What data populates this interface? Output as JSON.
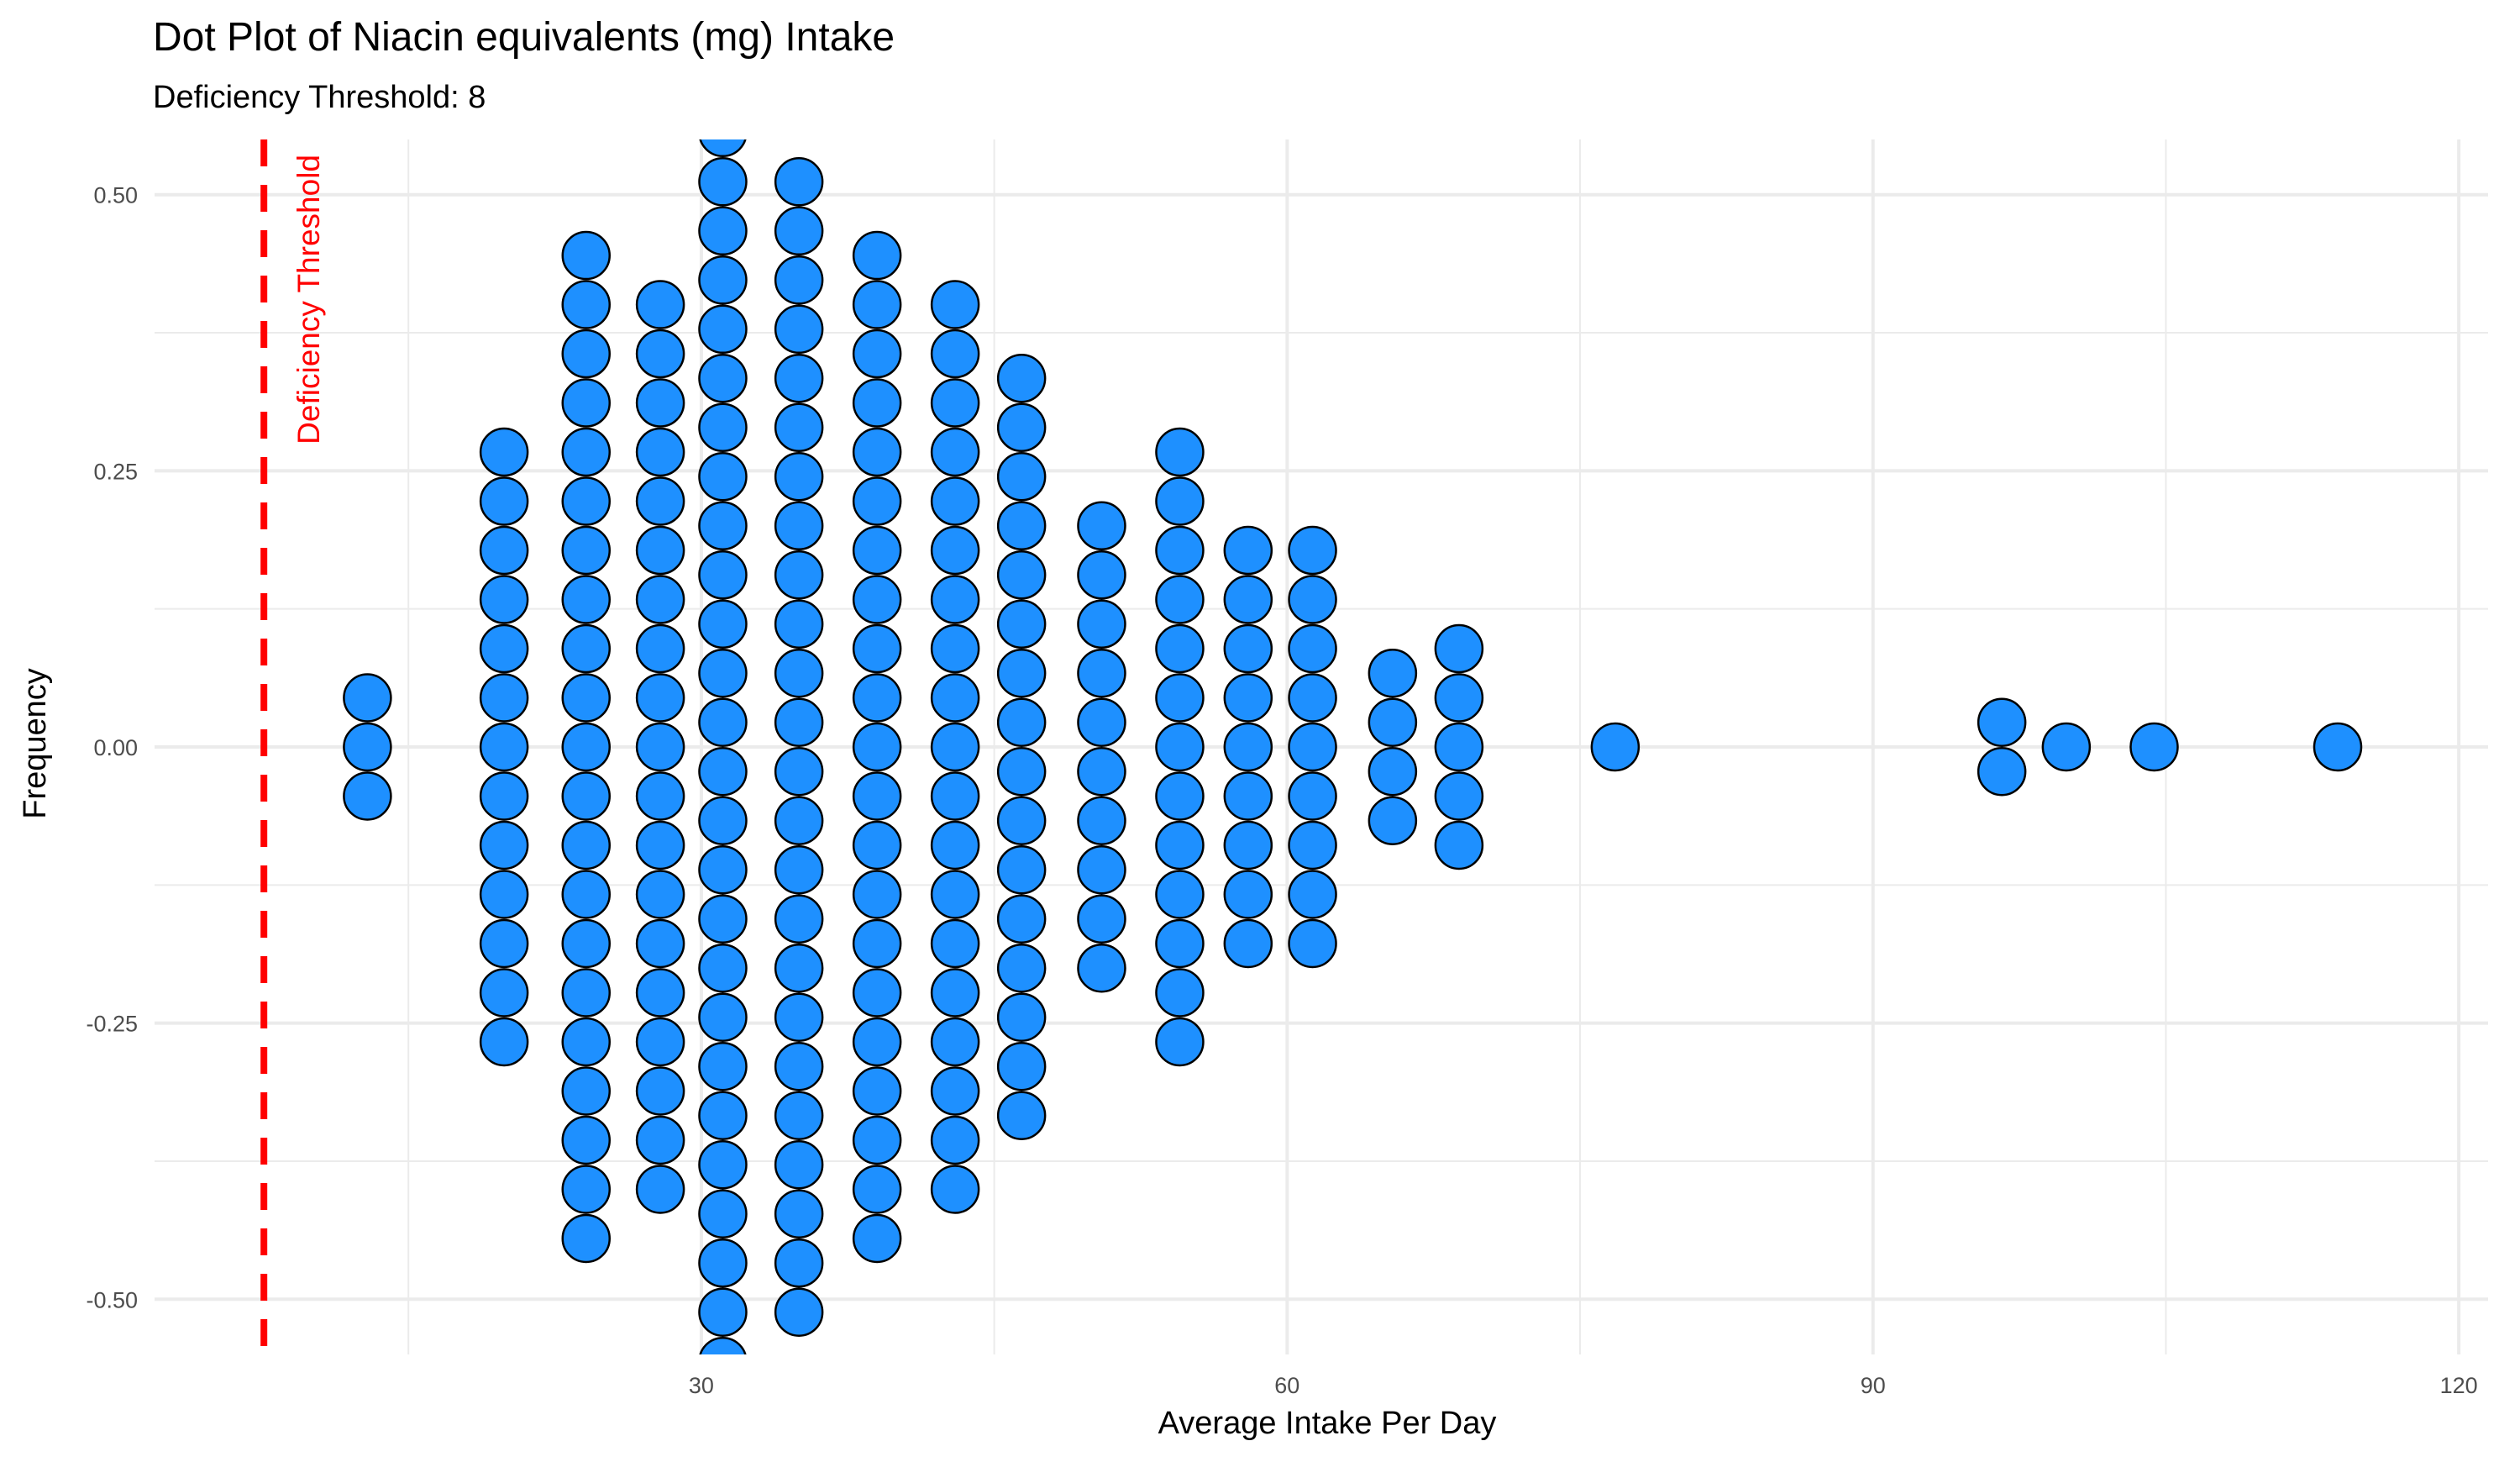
{
  "chart_data": {
    "type": "dot",
    "title": "Dot Plot of Niacin equivalents (mg) Intake",
    "subtitle": "Deficiency Threshold: 8",
    "xlabel": "Average Intake Per Day",
    "ylabel": "Frequency",
    "xlim": [
      2,
      121.5
    ],
    "ylim": [
      -0.55,
      0.55
    ],
    "x_ticks": [
      30,
      60,
      90,
      120
    ],
    "x_tick_labels": [
      "30",
      "60",
      "90",
      "120"
    ],
    "y_ticks": [
      -0.5,
      -0.25,
      0,
      0.25,
      0.5
    ],
    "y_tick_labels": [
      "-0.50",
      "-0.25",
      "0.00",
      "0.25",
      "0.50"
    ],
    "grid": true,
    "threshold": {
      "x": 7.6,
      "label": "Deficiency Threshold",
      "color": "#ff0000"
    },
    "stack_step": 0.0445,
    "dots": [
      {
        "x": 12.9,
        "count": 3
      },
      {
        "x": 19.9,
        "count": 13
      },
      {
        "x": 24.1,
        "count": 21
      },
      {
        "x": 27.9,
        "count": 19
      },
      {
        "x": 31.1,
        "count": 26
      },
      {
        "x": 35.0,
        "count": 24
      },
      {
        "x": 39.0,
        "count": 21
      },
      {
        "x": 43.0,
        "count": 19
      },
      {
        "x": 46.4,
        "count": 16
      },
      {
        "x": 50.5,
        "count": 10
      },
      {
        "x": 54.5,
        "count": 13
      },
      {
        "x": 58.0,
        "count": 9
      },
      {
        "x": 61.3,
        "count": 9
      },
      {
        "x": 65.4,
        "count": 4
      },
      {
        "x": 68.8,
        "count": 5
      },
      {
        "x": 76.8,
        "count": 1
      },
      {
        "x": 96.6,
        "count": 2
      },
      {
        "x": 99.9,
        "count": 1
      },
      {
        "x": 104.4,
        "count": 1
      },
      {
        "x": 113.8,
        "count": 1
      }
    ],
    "colors": {
      "fill": "#1e90ff",
      "stroke": "#000000",
      "grid": "#ebebeb"
    }
  }
}
